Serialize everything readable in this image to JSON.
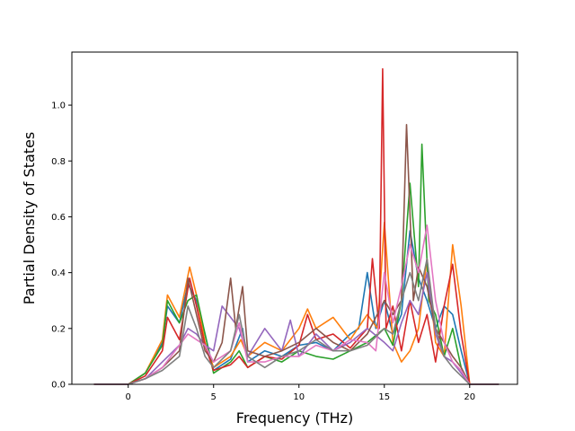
{
  "chart_data": {
    "type": "line",
    "title": "",
    "xlabel": "Frequency (THz)",
    "ylabel": "Partial Density of States",
    "xlim": [
      -3.3,
      22.8
    ],
    "ylim": [
      0.0,
      1.19
    ],
    "xticks": [
      0,
      5,
      10,
      15,
      20
    ],
    "yticks": [
      0.0,
      0.2,
      0.4,
      0.6,
      0.8,
      1.0
    ],
    "xtick_labels": [
      "0",
      "5",
      "10",
      "15",
      "20"
    ],
    "ytick_labels": [
      "0.0",
      "0.2",
      "0.4",
      "0.6",
      "0.8",
      "1.0"
    ],
    "grid": false,
    "legend": "none",
    "series": [
      {
        "color": "#1f77b4",
        "x": [
          -2,
          0,
          1,
          2,
          2.3,
          3,
          3.5,
          4,
          4.5,
          5,
          6,
          6.7,
          7,
          8,
          9,
          10,
          11,
          12,
          13,
          13.5,
          14,
          14.5,
          15,
          15.5,
          16,
          16.5,
          17,
          17.5,
          18,
          18.5,
          19,
          19.5,
          20,
          21.7
        ],
        "y": [
          0,
          0,
          0.04,
          0.15,
          0.28,
          0.22,
          0.36,
          0.3,
          0.18,
          0.05,
          0.09,
          0.2,
          0.08,
          0.12,
          0.1,
          0.14,
          0.15,
          0.12,
          0.18,
          0.2,
          0.4,
          0.2,
          0.3,
          0.18,
          0.25,
          0.55,
          0.38,
          0.3,
          0.2,
          0.28,
          0.25,
          0.12,
          0,
          0
        ]
      },
      {
        "color": "#ff7f0e",
        "x": [
          -2,
          0,
          1,
          2,
          2.3,
          3,
          3.6,
          4,
          4.5,
          5,
          6,
          6.6,
          7,
          8,
          9,
          10,
          10.5,
          11,
          12,
          13,
          14,
          14.6,
          15,
          15.5,
          16,
          16.5,
          17,
          17.5,
          18,
          18.5,
          19,
          19.5,
          20,
          21.7
        ],
        "y": [
          0,
          0,
          0.04,
          0.16,
          0.32,
          0.24,
          0.42,
          0.32,
          0.15,
          0.06,
          0.1,
          0.16,
          0.1,
          0.15,
          0.12,
          0.2,
          0.27,
          0.2,
          0.24,
          0.16,
          0.25,
          0.2,
          0.58,
          0.15,
          0.08,
          0.12,
          0.2,
          0.45,
          0.15,
          0.1,
          0.5,
          0.28,
          0,
          0
        ]
      },
      {
        "color": "#2ca02c",
        "x": [
          -2,
          0,
          1,
          2,
          2.3,
          3,
          3.5,
          4,
          4.5,
          5,
          6,
          6.5,
          7,
          8,
          9,
          10,
          11,
          12,
          13,
          14,
          15,
          15.5,
          16,
          16.5,
          17,
          17.2,
          17.6,
          18,
          18.5,
          19,
          19.5,
          20,
          21.7
        ],
        "y": [
          0,
          0,
          0.04,
          0.14,
          0.3,
          0.22,
          0.3,
          0.32,
          0.18,
          0.04,
          0.08,
          0.12,
          0.06,
          0.1,
          0.08,
          0.12,
          0.1,
          0.09,
          0.12,
          0.15,
          0.2,
          0.14,
          0.3,
          0.72,
          0.35,
          0.86,
          0.3,
          0.25,
          0.1,
          0.2,
          0.06,
          0,
          0
        ]
      },
      {
        "color": "#d62728",
        "x": [
          -2,
          0,
          1,
          2,
          2.3,
          3,
          3.6,
          4,
          4.5,
          5,
          6,
          6.5,
          7,
          8,
          9,
          10,
          10.5,
          11,
          12,
          13,
          14,
          14.3,
          14.7,
          14.9,
          15.1,
          15.5,
          16,
          16.5,
          17,
          17.5,
          18,
          18.5,
          19,
          19.5,
          20,
          21.7
        ],
        "y": [
          0,
          0,
          0.03,
          0.12,
          0.24,
          0.16,
          0.38,
          0.28,
          0.14,
          0.05,
          0.07,
          0.1,
          0.06,
          0.1,
          0.09,
          0.14,
          0.25,
          0.16,
          0.18,
          0.13,
          0.2,
          0.45,
          0.2,
          1.13,
          0.2,
          0.28,
          0.12,
          0.3,
          0.15,
          0.25,
          0.08,
          0.28,
          0.43,
          0.18,
          0,
          0
        ]
      },
      {
        "color": "#9467bd",
        "x": [
          -2,
          0,
          1,
          2,
          3,
          3.5,
          4,
          4.5,
          5,
          5.5,
          6,
          6.5,
          7,
          8,
          9,
          9.5,
          10,
          11,
          12,
          13,
          14,
          15,
          15.5,
          16,
          16.5,
          17,
          17.5,
          18,
          18.5,
          19,
          20,
          21.7
        ],
        "y": [
          0,
          0,
          0.02,
          0.08,
          0.14,
          0.2,
          0.18,
          0.14,
          0.12,
          0.28,
          0.24,
          0.2,
          0.1,
          0.2,
          0.12,
          0.23,
          0.1,
          0.18,
          0.12,
          0.15,
          0.2,
          0.15,
          0.12,
          0.22,
          0.3,
          0.25,
          0.4,
          0.18,
          0.1,
          0.08,
          0,
          0
        ]
      },
      {
        "color": "#8c564b",
        "x": [
          -2,
          0,
          1,
          2,
          3,
          3.5,
          4,
          4.5,
          5,
          5.5,
          6,
          6.3,
          6.7,
          7,
          8,
          9,
          10,
          11,
          12,
          13,
          14,
          15,
          15.5,
          16,
          16.3,
          16.7,
          17,
          17.5,
          18,
          18.5,
          19,
          19.5,
          20,
          21.7
        ],
        "y": [
          0,
          0,
          0.02,
          0.06,
          0.12,
          0.38,
          0.25,
          0.12,
          0.08,
          0.15,
          0.38,
          0.2,
          0.35,
          0.12,
          0.1,
          0.12,
          0.15,
          0.2,
          0.15,
          0.12,
          0.18,
          0.3,
          0.25,
          0.3,
          0.93,
          0.3,
          0.42,
          0.35,
          0.2,
          0.15,
          0.1,
          0.06,
          0,
          0
        ]
      },
      {
        "color": "#e377c2",
        "x": [
          -2,
          0,
          1,
          2,
          3,
          3.5,
          4,
          4.5,
          5,
          6,
          6.5,
          7,
          8,
          9,
          10,
          11,
          12,
          13,
          14,
          14.5,
          15,
          15.5,
          16,
          16.5,
          17,
          17.5,
          18,
          18.5,
          19,
          19.5,
          20,
          21.7
        ],
        "y": [
          0,
          0,
          0.02,
          0.06,
          0.14,
          0.18,
          0.16,
          0.14,
          0.08,
          0.12,
          0.22,
          0.08,
          0.08,
          0.1,
          0.1,
          0.14,
          0.12,
          0.16,
          0.15,
          0.12,
          0.4,
          0.22,
          0.35,
          0.5,
          0.4,
          0.57,
          0.3,
          0.15,
          0.08,
          0.05,
          0,
          0
        ]
      },
      {
        "color": "#7f7f7f",
        "x": [
          -2,
          0,
          1,
          2,
          3,
          3.5,
          4,
          4.5,
          5,
          6,
          6.5,
          7,
          8,
          9,
          10,
          11,
          12,
          13,
          14,
          15,
          15.5,
          16,
          16.5,
          17,
          17.5,
          18,
          18.5,
          19,
          19.5,
          20,
          21.7
        ],
        "y": [
          0,
          0,
          0.02,
          0.05,
          0.1,
          0.28,
          0.2,
          0.1,
          0.06,
          0.12,
          0.25,
          0.1,
          0.06,
          0.1,
          0.12,
          0.16,
          0.12,
          0.12,
          0.14,
          0.2,
          0.18,
          0.3,
          0.4,
          0.3,
          0.45,
          0.2,
          0.1,
          0.06,
          0.03,
          0,
          0
        ]
      }
    ]
  }
}
